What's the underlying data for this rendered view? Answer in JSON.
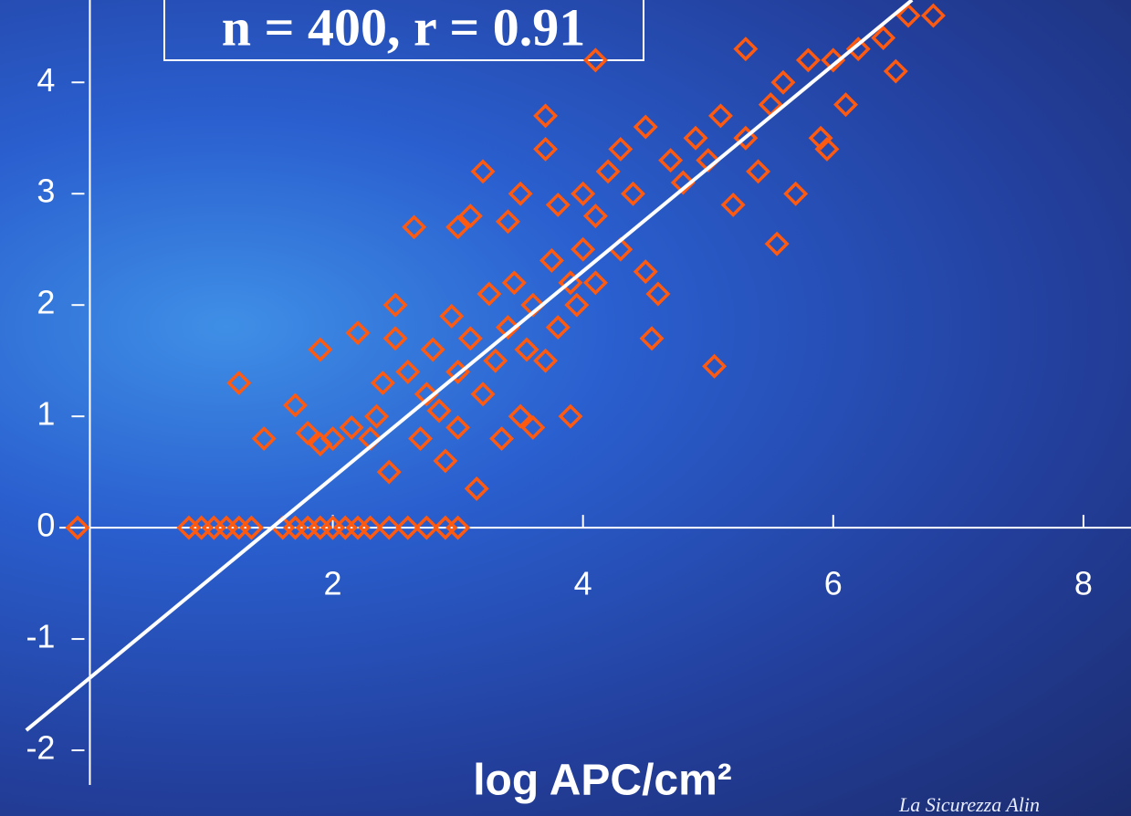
{
  "chart_data": {
    "type": "scatter",
    "annotation": "n = 400, r = 0.91",
    "x_label": "log APC/cm²",
    "footer": "La Sicurezza Alin",
    "color": "#ff5a0f",
    "x": [
      -0.04,
      0.85,
      0.95,
      1.05,
      1.15,
      1.25,
      1.35,
      1.6,
      1.7,
      1.8,
      1.9,
      2.0,
      2.1,
      2.2,
      2.3,
      2.45,
      2.6,
      2.75,
      2.9,
      3.0,
      1.25,
      1.45,
      1.7,
      1.8,
      1.9,
      2.0,
      2.15,
      2.3,
      2.4,
      2.45,
      1.9,
      2.2,
      2.35,
      2.5,
      2.5,
      2.6,
      2.7,
      2.75,
      2.8,
      2.85,
      2.9,
      2.95,
      3.0,
      3.0,
      3.1,
      3.15,
      3.2,
      3.25,
      3.3,
      3.35,
      3.4,
      3.45,
      3.5,
      3.55,
      3.6,
      3.6,
      3.7,
      3.75,
      3.8,
      3.9,
      3.9,
      3.95,
      4.0,
      4.1,
      3.1,
      3.2,
      2.65,
      3.0,
      3.5,
      3.7,
      3.7,
      3.8,
      4.0,
      4.1,
      4.2,
      4.3,
      4.4,
      4.5,
      4.5,
      4.55,
      4.6,
      4.7,
      4.8,
      4.9,
      5.0,
      5.1,
      5.05,
      5.2,
      5.3,
      5.4,
      5.5,
      5.55,
      5.6,
      5.7,
      5.8,
      5.9,
      6.0,
      6.1,
      6.2,
      6.4,
      6.5,
      6.6,
      6.8,
      4.1,
      5.3,
      5.95,
      4.3,
      3.4
    ],
    "values": [
      0,
      0,
      0,
      0,
      0,
      0,
      0,
      0,
      0,
      0,
      0,
      0,
      0,
      0,
      0,
      0,
      0,
      0,
      0,
      0,
      1.3,
      0.8,
      1.1,
      0.85,
      0.75,
      0.8,
      0.9,
      0.8,
      1.3,
      0.5,
      1.6,
      1.75,
      1.0,
      1.7,
      2.0,
      1.4,
      0.8,
      1.2,
      1.6,
      1.05,
      0.6,
      1.9,
      1.4,
      0.9,
      1.7,
      0.35,
      1.2,
      2.1,
      1.5,
      0.8,
      1.8,
      2.2,
      1.0,
      1.6,
      2.0,
      0.9,
      1.5,
      2.4,
      1.8,
      2.2,
      1.0,
      2.0,
      2.5,
      2.2,
      2.8,
      3.2,
      2.7,
      2.7,
      3.0,
      3.4,
      3.7,
      2.9,
      3.0,
      2.8,
      3.2,
      2.5,
      3.0,
      3.6,
      2.3,
      1.7,
      2.1,
      3.3,
      3.1,
      3.5,
      3.3,
      3.7,
      1.45,
      2.9,
      3.5,
      3.2,
      3.8,
      2.55,
      4.0,
      3.0,
      4.2,
      3.5,
      4.2,
      3.8,
      4.3,
      4.4,
      4.1,
      4.6,
      4.6,
      4.2,
      4.3,
      3.4,
      3.4,
      2.75
    ],
    "fit": {
      "x": [
        -0.45,
        6.63
      ],
      "values": [
        -1.82,
        4.74
      ],
      "color": "#ffffff"
    },
    "xlim": [
      -0.66,
      8.38
    ],
    "ylim": [
      -2.59,
      4.74
    ],
    "xticks": [
      2,
      4,
      6,
      8
    ],
    "yticks": [
      -2,
      -1,
      0,
      1,
      2,
      3,
      4
    ]
  }
}
